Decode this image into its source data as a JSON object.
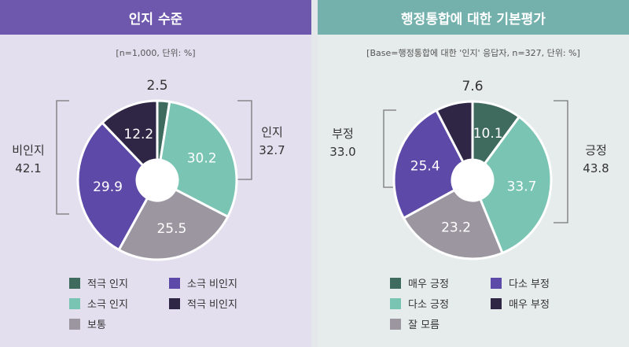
{
  "colors": {
    "dark_green": "#3f6a5e",
    "teal": "#79c4b3",
    "gray": "#9b96a0",
    "purple": "#5d4aa8",
    "dark_purple": "#2f2545",
    "left_header": "#6e58ae",
    "right_header": "#74b0ac"
  },
  "left": {
    "title": "인지 수준",
    "note": "[n=1,000, 단위: %]",
    "group_right": {
      "label": "인지",
      "value": "32.7"
    },
    "group_left": {
      "label": "비인지",
      "value": "42.1"
    },
    "legend": [
      "적극 인지",
      "소극 비인지",
      "소극 인지",
      "적극 비인지",
      "보통"
    ]
  },
  "right": {
    "title": "행정통합에 대한 기본평가",
    "note": "[Base=행정통합에 대한 '인지' 응답자, n=327, 단위: %]",
    "group_left": {
      "label": "부정",
      "value": "33.0"
    },
    "group_right": {
      "label": "긍정",
      "value": "43.8"
    },
    "legend": [
      "매우 긍정",
      "다소 부정",
      "다소 긍정",
      "매우 부정",
      "잘 모름"
    ]
  },
  "chart_data": [
    {
      "type": "pie",
      "title": "인지 수준",
      "categories": [
        "적극 인지",
        "소극 인지",
        "보통",
        "소극 비인지",
        "적극 비인지"
      ],
      "values": [
        2.5,
        30.2,
        25.5,
        29.9,
        12.2
      ],
      "colors": [
        "#3f6a5e",
        "#79c4b3",
        "#9b96a0",
        "#5d4aa8",
        "#2f2545"
      ],
      "groups": [
        {
          "name": "인지",
          "value": 32.7
        },
        {
          "name": "비인지",
          "value": 42.1
        }
      ]
    },
    {
      "type": "pie",
      "title": "행정통합에 대한 기본평가",
      "categories": [
        "매우 긍정",
        "다소 긍정",
        "잘 모름",
        "다소 부정",
        "매우 부정"
      ],
      "values": [
        10.1,
        33.7,
        23.2,
        25.4,
        7.6
      ],
      "colors": [
        "#3f6a5e",
        "#79c4b3",
        "#9b96a0",
        "#5d4aa8",
        "#2f2545"
      ],
      "groups": [
        {
          "name": "긍정",
          "value": 43.8
        },
        {
          "name": "부정",
          "value": 33.0
        }
      ]
    }
  ]
}
